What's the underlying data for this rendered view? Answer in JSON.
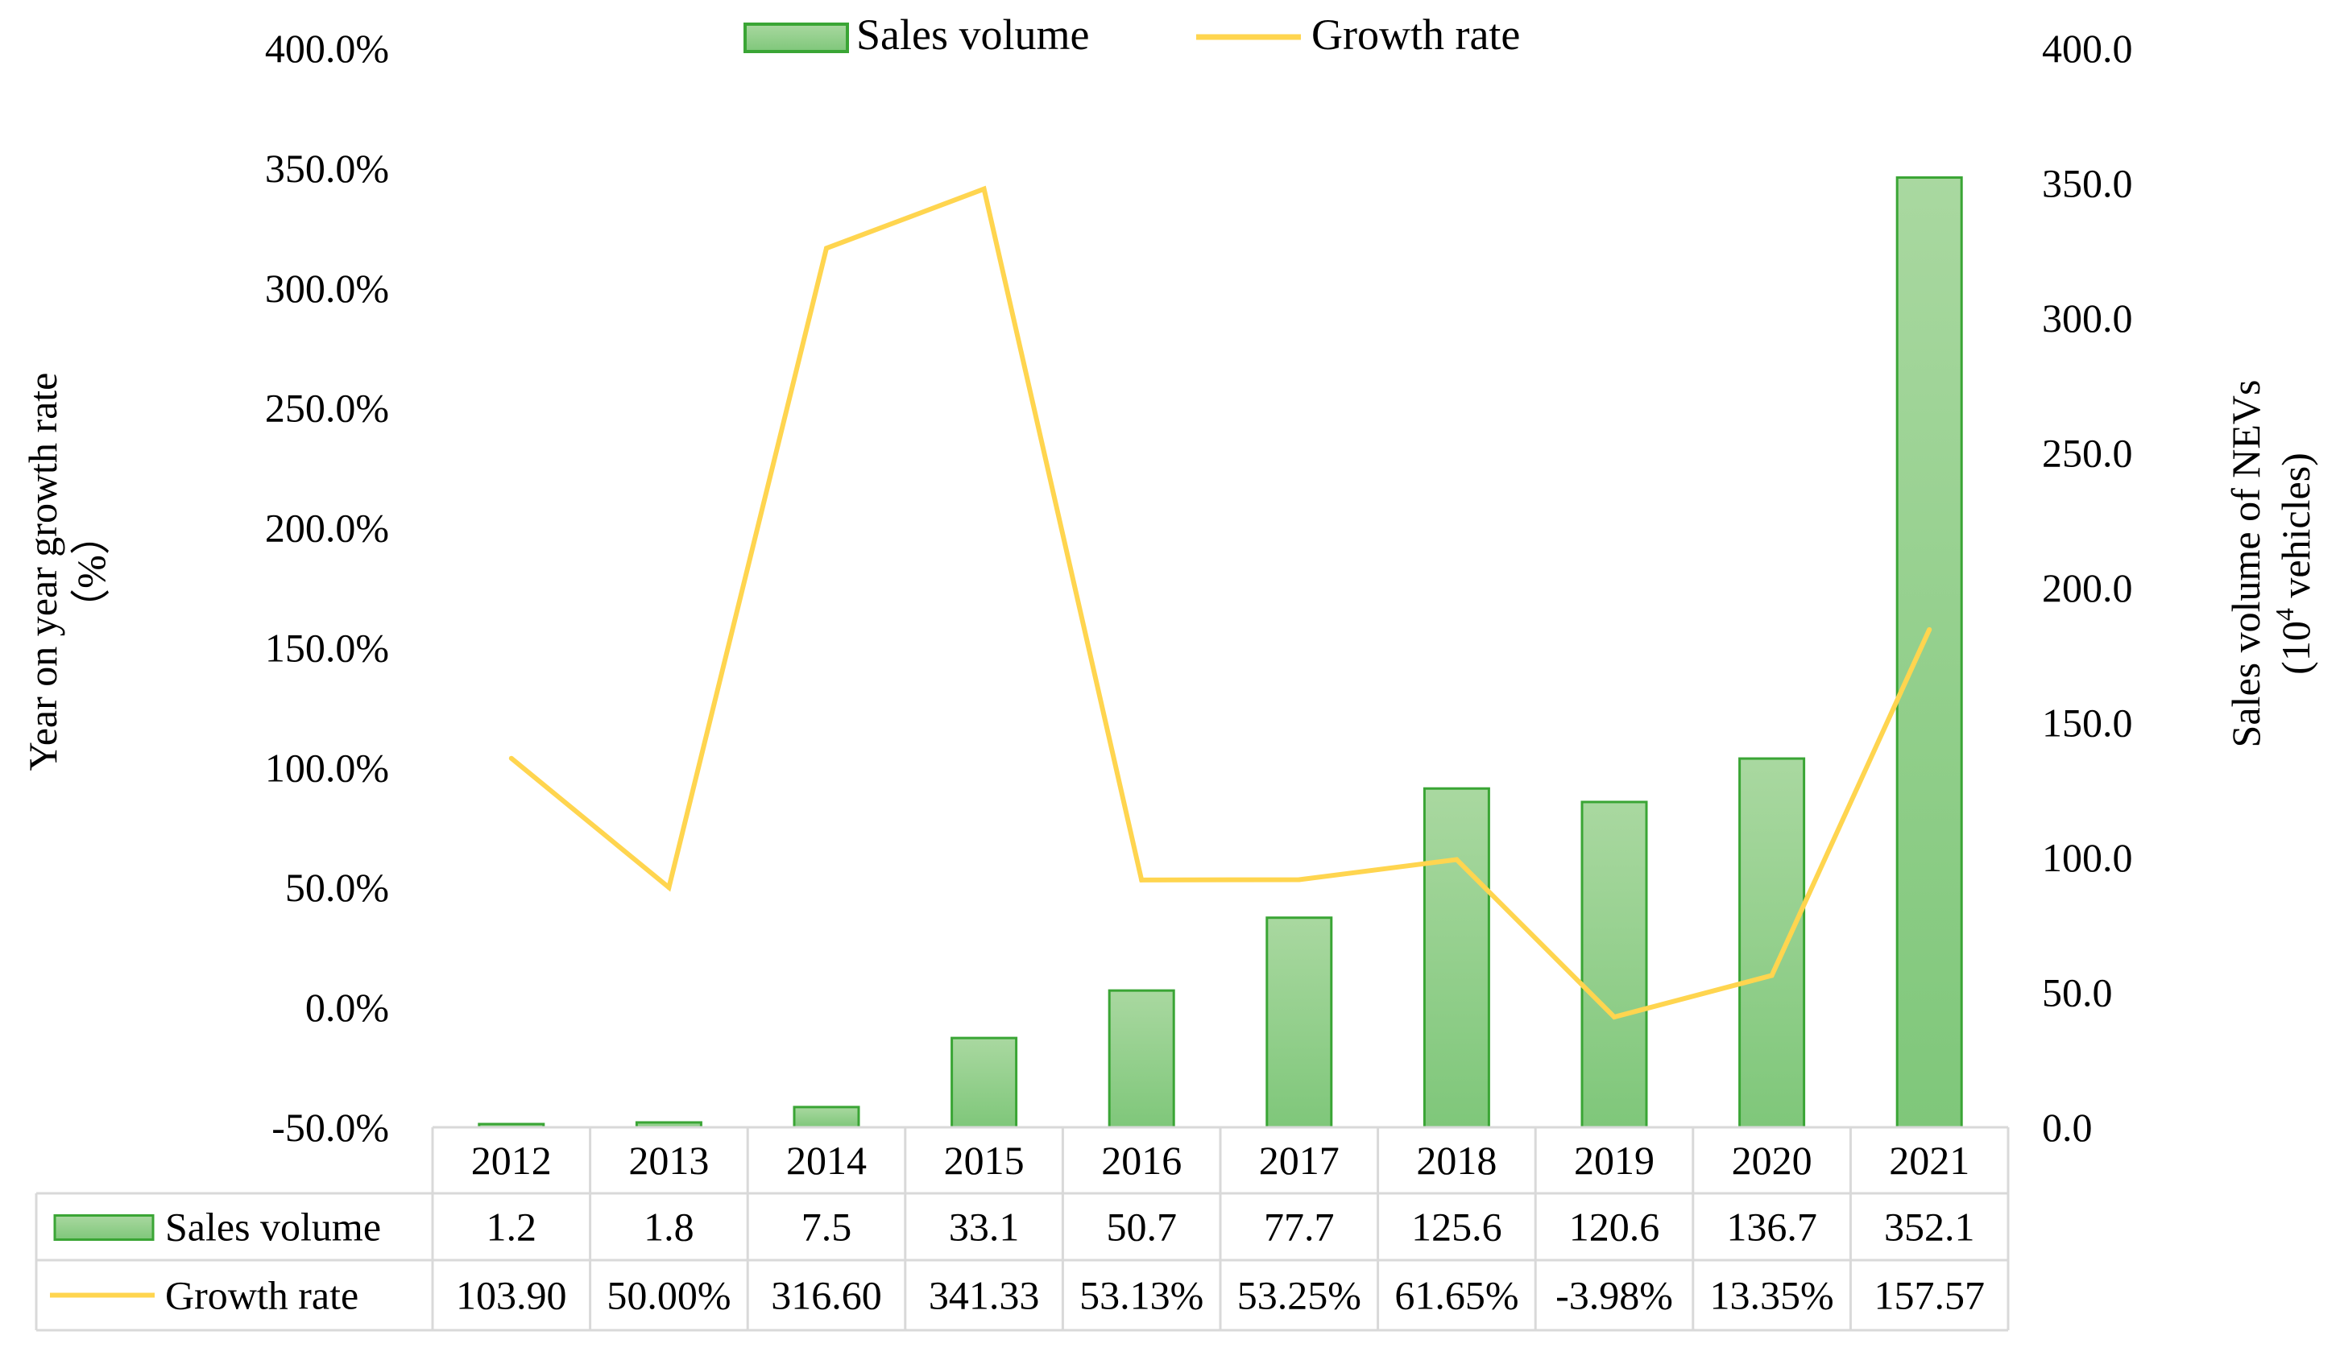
{
  "chart_data": {
    "type": "bar+line",
    "legend": {
      "position": "top-center",
      "items": [
        {
          "name": "Sales volume",
          "marker": "bar"
        },
        {
          "name": "Growth rate",
          "marker": "line"
        }
      ]
    },
    "categories": [
      "2012",
      "2013",
      "2014",
      "2015",
      "2016",
      "2017",
      "2018",
      "2019",
      "2020",
      "2021"
    ],
    "series": [
      {
        "name": "Sales volume",
        "type": "bar",
        "axis": "right",
        "values": [
          1.2,
          1.8,
          7.5,
          33.1,
          50.7,
          77.7,
          125.6,
          120.6,
          136.7,
          352.1
        ]
      },
      {
        "name": "Growth rate",
        "type": "line",
        "axis": "left",
        "values": [
          103.9,
          50.0,
          316.6,
          341.33,
          53.13,
          53.25,
          61.65,
          -3.98,
          13.35,
          157.57
        ]
      }
    ],
    "left_axis": {
      "title_line1": "Year on year growth rate",
      "title_line2": "（%）",
      "range": [
        -50,
        400
      ],
      "step": 50,
      "ticks": [
        "400.0%",
        "350.0%",
        "300.0%",
        "250.0%",
        "200.0%",
        "150.0%",
        "100.0%",
        "50.0%",
        "0.0%",
        "-50.0%"
      ]
    },
    "right_axis": {
      "title_line1": "Sales volume of NEVs",
      "title_line2_prefix": "(10",
      "title_line2_sup": "4",
      "title_line2_suffix": " vehicles)",
      "range": [
        0,
        400
      ],
      "step": 50,
      "ticks": [
        "400.0",
        "350.0",
        "300.0",
        "250.0",
        "200.0",
        "150.0",
        "100.0",
        "50.0",
        "0.0"
      ]
    },
    "data_table": {
      "rows": [
        {
          "label": "Sales volume",
          "marker": "bar",
          "cells": [
            "1.2",
            "1.8",
            "7.5",
            "33.1",
            "50.7",
            "77.7",
            "125.6",
            "120.6",
            "136.7",
            "352.1"
          ]
        },
        {
          "label": "Growth rate",
          "marker": "line",
          "cells": [
            "103.90",
            "50.00%",
            "316.60",
            "341.33",
            "53.13%",
            "53.25%",
            "61.65%",
            "-3.98%",
            "13.35%",
            "157.57"
          ]
        }
      ]
    },
    "colors": {
      "bar_fill_top": "#a9d8a0",
      "bar_fill_bottom": "#7fc77a",
      "bar_stroke": "#3aa535",
      "line": "#ffd54f",
      "table_border": "#d9d9d9",
      "text": "#000000"
    },
    "grid": false
  }
}
